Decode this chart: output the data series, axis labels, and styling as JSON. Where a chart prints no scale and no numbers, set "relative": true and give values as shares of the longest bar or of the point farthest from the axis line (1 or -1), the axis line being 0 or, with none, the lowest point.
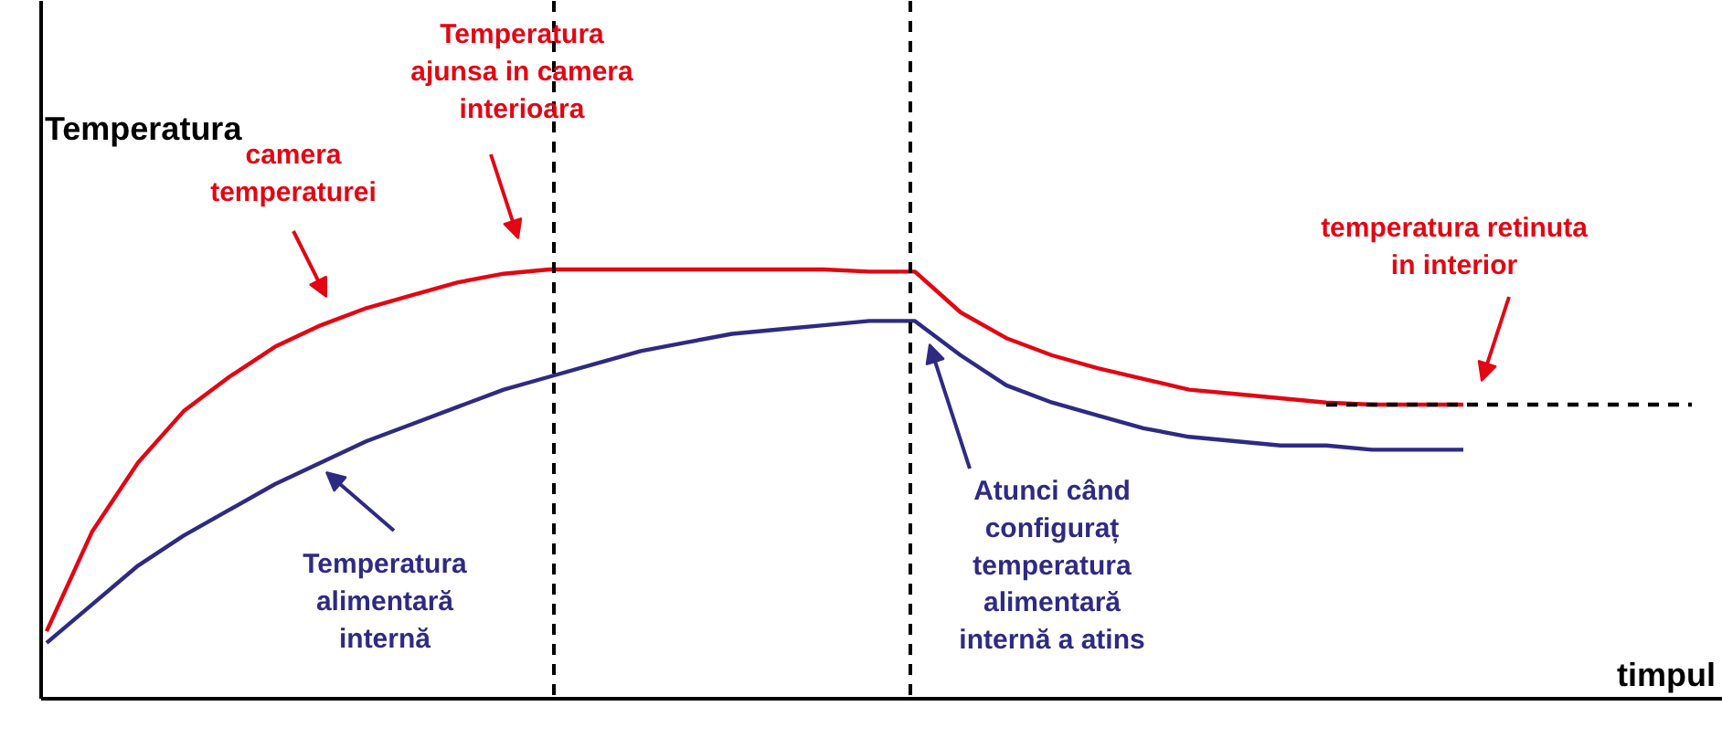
{
  "chart_data": {
    "type": "line",
    "relative": true,
    "xlabel": "timpul",
    "ylabel": "Temperatura",
    "categories": [
      null,
      null,
      null,
      null,
      null,
      null,
      null,
      null,
      null,
      null,
      null,
      null,
      null,
      null,
      null,
      null,
      null,
      null,
      null,
      null,
      null,
      null,
      null,
      null,
      null,
      null,
      null,
      null,
      null,
      null,
      null,
      null,
      null,
      null,
      null,
      null,
      null
    ],
    "series": [
      {
        "color": "#e30613",
        "values": [
          0.157,
          0.39,
          0.55,
          0.67,
          0.75,
          0.82,
          0.87,
          0.91,
          0.94,
          0.97,
          0.99,
          1.0,
          1.0,
          1.0,
          1.0,
          1.0,
          1.0,
          1.0,
          0.995,
          0.995,
          0.9,
          0.84,
          0.8,
          0.77,
          0.745,
          0.72,
          0.71,
          0.7,
          0.69,
          0.685,
          0.685,
          0.685,
          null,
          null,
          null,
          null,
          null
        ]
      },
      {
        "color": "#2e2a84",
        "values": [
          0.13,
          0.22,
          0.31,
          0.38,
          0.44,
          0.5,
          0.55,
          0.6,
          0.64,
          0.68,
          0.72,
          0.75,
          0.78,
          0.81,
          0.83,
          0.85,
          0.86,
          0.87,
          0.88,
          0.88,
          0.8,
          0.73,
          0.69,
          0.66,
          0.63,
          0.61,
          0.6,
          0.59,
          0.59,
          0.58,
          0.58,
          0.58,
          null,
          null,
          null,
          null,
          null
        ]
      },
      {
        "type": "line",
        "color": "#000000",
        "line_style": "dashed",
        "values": [
          null,
          null,
          null,
          null,
          null,
          null,
          null,
          null,
          null,
          null,
          null,
          null,
          null,
          null,
          null,
          null,
          null,
          null,
          null,
          null,
          null,
          null,
          null,
          null,
          null,
          null,
          null,
          null,
          0.685,
          0.685,
          0.685,
          0.685,
          0.685,
          0.685,
          0.685,
          0.685,
          0.685
        ]
      }
    ],
    "annotations": [
      "Temperatura\najunsa in camera\ninterioara",
      "camera\ntemperaturei",
      "temperatura retinuta\nin interior",
      "Temperatura\nalimentară\ninternă",
      "Atunci când\nconfiguraț\ntemperatura\nalimentară\ninternă a atins"
    ]
  }
}
